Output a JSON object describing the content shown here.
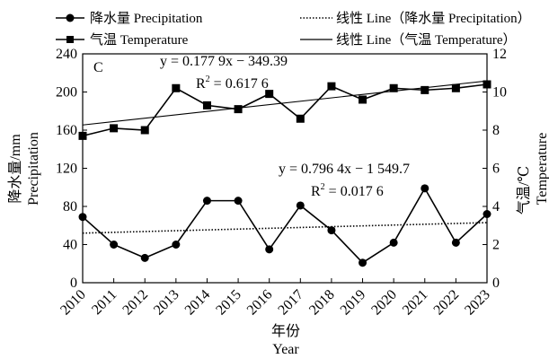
{
  "chart_data": {
    "type": "line",
    "panel_label": "C",
    "x": [
      "2010",
      "2011",
      "2012",
      "2013",
      "2014",
      "2015",
      "2016",
      "2017",
      "2018",
      "2019",
      "2020",
      "2021",
      "2022",
      "2023"
    ],
    "xlabel_cn": "年份",
    "xlabel_en": "Year",
    "ylabel_left_cn": "降水量/mm",
    "ylabel_left_en": "Precipitation",
    "ylabel_right_cn": "气温/℃",
    "ylabel_right_en": "Temperature",
    "ylim_left": [
      0,
      240
    ],
    "yticks_left": [
      0,
      40,
      80,
      120,
      160,
      200,
      240
    ],
    "ylim_right": [
      0,
      12
    ],
    "yticks_right": [
      0,
      2,
      4,
      6,
      8,
      10,
      12
    ],
    "grid": false,
    "legend_position": "top",
    "series": [
      {
        "name": "降水量 Precipitation",
        "axis": "left",
        "marker": "circle",
        "values": [
          69,
          40,
          26,
          40,
          86,
          86,
          35,
          81,
          55,
          21,
          42,
          99,
          42,
          72
        ]
      },
      {
        "name": "气温 Temperature",
        "axis": "right",
        "marker": "square",
        "values": [
          7.7,
          8.1,
          8.0,
          10.2,
          9.3,
          9.1,
          9.9,
          8.6,
          10.3,
          9.6,
          10.2,
          10.1,
          10.2,
          10.4
        ]
      }
    ],
    "trendlines": [
      {
        "name": "线性 Line（降水量 Precipitation）",
        "axis": "left",
        "style": "dotted",
        "start": 52,
        "end": 63,
        "equation": "y = 0.796 4x − 1 549.7",
        "r2_label": "R",
        "r2_sup": "2",
        "r2_value": " = 0.017 6"
      },
      {
        "name": "线性 Line（气温 Temperature）",
        "axis": "right",
        "style": "solid",
        "start": 8.27,
        "end": 10.58,
        "equation": "y = 0.177 9x − 349.39",
        "r2_label": "R",
        "r2_sup": "2",
        "r2_value": " = 0.617 6"
      }
    ]
  }
}
